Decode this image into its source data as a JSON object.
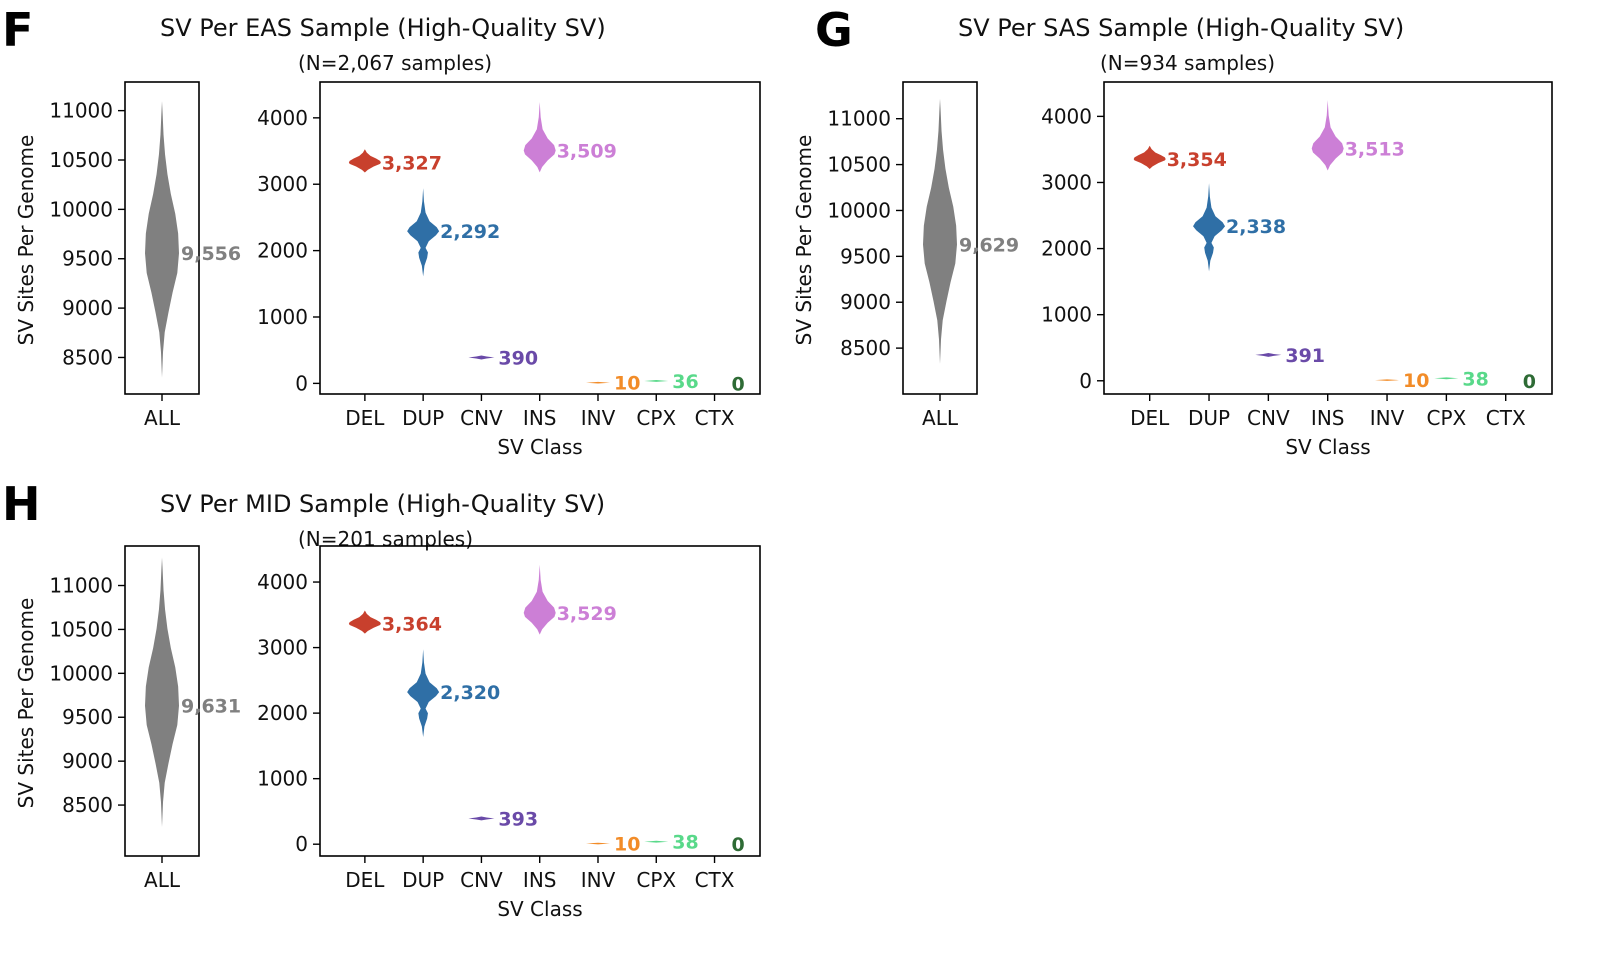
{
  "figure": {
    "panels": [
      {
        "letter": "F",
        "title": "SV Per EAS Sample (High-Quality SV)",
        "subtitle": "(N=2,067 samples)"
      },
      {
        "letter": "G",
        "title": "SV Per SAS Sample (High-Quality SV)",
        "subtitle": "(N=934 samples)"
      },
      {
        "letter": "H",
        "title": "SV Per MID Sample (High-Quality SV)",
        "subtitle": "(N=201 samples)"
      }
    ]
  },
  "colors": {
    "ALL": "#808080",
    "DEL": "#c8402d",
    "DUP": "#2f6fa6",
    "CNV": "#6a4aa8",
    "INS": "#cc7fd6",
    "INV": "#f28c28",
    "CPX": "#59d98a",
    "CTX": "#2e6b35"
  },
  "chart_data": [
    {
      "panel": "F",
      "type": "violin",
      "left": {
        "ylabel": "SV Sites Per Genome",
        "yticks": [
          8500,
          9000,
          9500,
          10000,
          10500,
          11000
        ],
        "ylim": [
          8130,
          11290
        ],
        "category": "ALL",
        "median": 9556,
        "label": "9,556",
        "range": [
          8290,
          11090
        ]
      },
      "right": {
        "xlabel": "SV Class",
        "yticks": [
          0,
          1000,
          2000,
          3000,
          4000
        ],
        "ylim": [
          -160,
          4540
        ],
        "categories": [
          "DEL",
          "DUP",
          "CNV",
          "INS",
          "INV",
          "CPX",
          "CTX"
        ],
        "medians": [
          3327,
          2292,
          390,
          3509,
          10,
          36,
          0
        ],
        "labels": [
          "3,327",
          "2,292",
          "390",
          "3,509",
          "10",
          "36",
          "0"
        ]
      }
    },
    {
      "panel": "G",
      "type": "violin",
      "left": {
        "ylabel": "SV Sites Per Genome",
        "yticks": [
          8500,
          9000,
          9500,
          10000,
          10500,
          11000
        ],
        "ylim": [
          8000,
          11400
        ],
        "category": "ALL",
        "median": 9629,
        "label": "9,629",
        "range": [
          8380,
          11270
        ]
      },
      "right": {
        "xlabel": "SV Class",
        "yticks": [
          0,
          1000,
          2000,
          3000,
          4000
        ],
        "ylim": [
          -200,
          4520
        ],
        "categories": [
          "DEL",
          "DUP",
          "CNV",
          "INS",
          "INV",
          "CPX",
          "CTX"
        ],
        "medians": [
          3354,
          2338,
          391,
          3513,
          10,
          38,
          0
        ],
        "labels": [
          "3,354",
          "2,338",
          "391",
          "3,513",
          "10",
          "38",
          "0"
        ]
      }
    },
    {
      "panel": "H",
      "type": "violin",
      "left": {
        "ylabel": "SV Sites Per Genome",
        "yticks": [
          8500,
          9000,
          9500,
          10000,
          10500,
          11000
        ],
        "ylim": [
          7920,
          11450
        ],
        "category": "ALL",
        "median": 9631,
        "label": "9,631",
        "range": [
          8230,
          11300
        ]
      },
      "right": {
        "xlabel": "SV Class",
        "yticks": [
          0,
          1000,
          2000,
          3000,
          4000
        ],
        "ylim": [
          -180,
          4550
        ],
        "categories": [
          "DEL",
          "DUP",
          "CNV",
          "INS",
          "INV",
          "CPX",
          "CTX"
        ],
        "medians": [
          3364,
          2320,
          393,
          3529,
          10,
          38,
          0
        ],
        "labels": [
          "3,364",
          "2,320",
          "393",
          "3,529",
          "10",
          "38",
          "0"
        ]
      }
    }
  ]
}
